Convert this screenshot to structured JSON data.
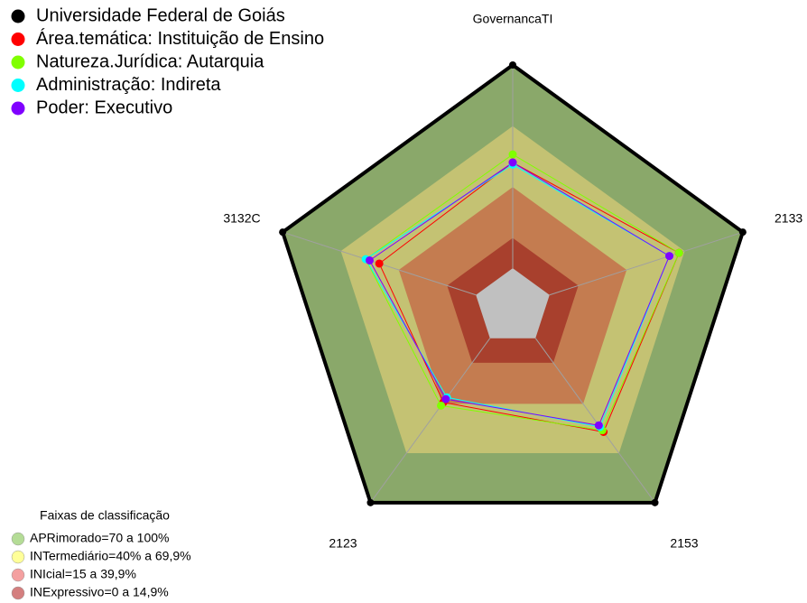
{
  "chart_data": {
    "type": "radar",
    "categories": [
      "GovernancaTI",
      "2133",
      "2153",
      "2123",
      "3132C"
    ],
    "ylim": [
      0,
      100
    ],
    "series": [
      {
        "name": "Universidade Federal de Goiás",
        "color": "#000000",
        "values": [
          100,
          100,
          100,
          100,
          100
        ]
      },
      {
        "name": "Área.temática: Instituição de Ensino",
        "color": "#ff0000",
        "values": [
          52,
          67,
          57,
          39,
          50
        ]
      },
      {
        "name": "Natureza.Jurídica: Autarquia",
        "color": "#80ff00",
        "values": [
          56,
          67,
          56,
          41,
          57
        ]
      },
      {
        "name": "Administração: Indireta",
        "color": "#00ffff",
        "values": [
          51,
          62,
          54,
          36,
          57
        ]
      },
      {
        "name": "Poder: Executivo",
        "color": "#8000ff",
        "values": [
          52,
          62,
          53,
          37,
          55
        ]
      }
    ],
    "band_legend_title": "Faixas de classificação",
    "bands": [
      {
        "label": "APRimorado=70 a 100%",
        "range": [
          70,
          100
        ],
        "color": "#b4dc96",
        "fill": "#8aa86a"
      },
      {
        "label": "INTermediário=40% a 69,9%",
        "range": [
          40,
          69.9
        ],
        "color": "#ffff99",
        "fill": "#c4c273"
      },
      {
        "label": "INIcial=15 a 39,9%",
        "range": [
          15,
          39.9
        ],
        "color": "#f4a0a0",
        "fill": "#c47c50"
      },
      {
        "label": "INExpressivo=0 a 14,9%",
        "range": [
          0,
          14.9
        ],
        "color": "#d47f7f",
        "fill": "#a8402d"
      }
    ]
  }
}
